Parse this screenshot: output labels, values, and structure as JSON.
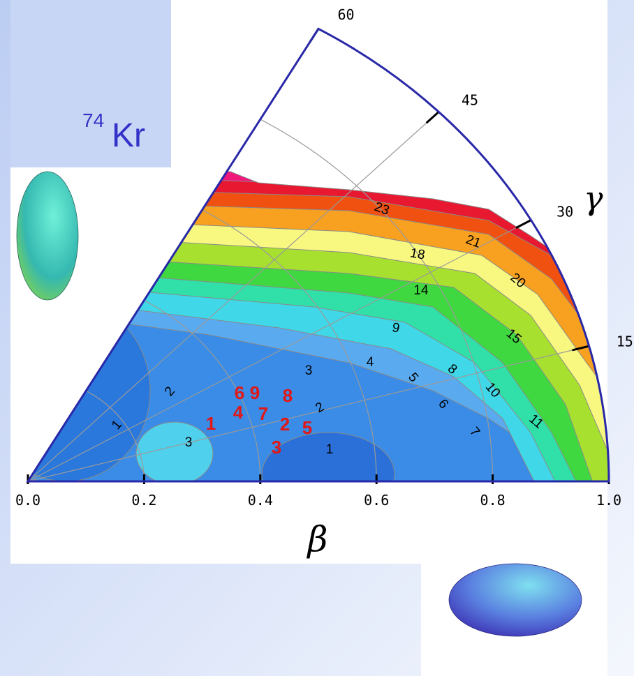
{
  "chart_data": {
    "type": "polar-contour",
    "nucleus": {
      "mass_number": "74",
      "symbol": "Kr"
    },
    "xlabel": "β",
    "xlim": [
      0,
      1
    ],
    "xticks": [
      {
        "value": 0,
        "label": "0.0"
      },
      {
        "value": 0.2,
        "label": "0.2"
      },
      {
        "value": 0.4,
        "label": "0.4"
      },
      {
        "value": 0.6,
        "label": "0.6"
      },
      {
        "value": 0.8,
        "label": "0.8"
      },
      {
        "value": 1,
        "label": "1.0"
      }
    ],
    "angle_label": "γ",
    "anglelim": [
      0,
      60
    ],
    "angleticks": [
      15,
      30,
      45,
      60
    ],
    "contour_labels": [
      "23",
      "21",
      "18",
      "20",
      "14",
      "15",
      "9",
      "8",
      "10",
      "11",
      "3",
      "4",
      "5",
      "6",
      "7",
      "2",
      "1",
      "3",
      "1",
      "2"
    ],
    "point_labels": [
      "6",
      "9",
      "8",
      "4",
      "7",
      "1",
      "2",
      "5",
      "3"
    ]
  }
}
